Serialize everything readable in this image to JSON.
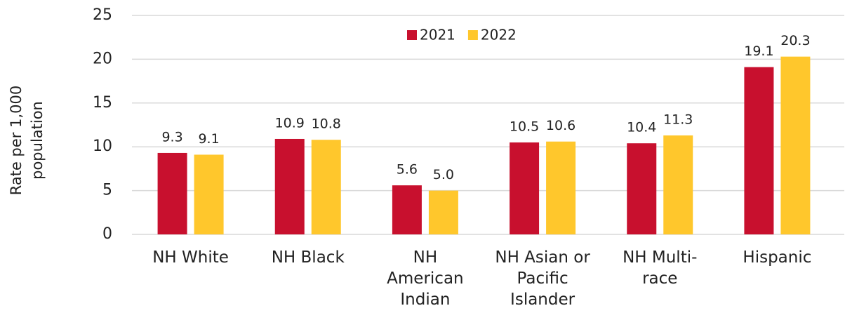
{
  "chart_data": {
    "type": "bar",
    "y_label": "Rate per 1,000 population",
    "categories": [
      "NH White",
      "NH Black",
      "NH American Indian",
      "NH Asian or Pacific Islander",
      "NH Multi-race",
      "Hispanic"
    ],
    "series": [
      {
        "name": "2021",
        "color": "#c8102e",
        "values": [
          9.3,
          10.9,
          5.6,
          10.5,
          10.4,
          19.1
        ],
        "value_labels": [
          "9.3",
          "10.9",
          "5.6",
          "10.5",
          "10.4",
          "19.1"
        ]
      },
      {
        "name": "2022",
        "color": "#ffc72c",
        "values": [
          9.1,
          10.8,
          5.0,
          10.6,
          11.3,
          20.3
        ],
        "value_labels": [
          "9.1",
          "10.8",
          "5.0",
          "10.6",
          "11.3",
          "20.3"
        ]
      }
    ],
    "ylim": [
      0,
      25
    ],
    "yticks": [
      0,
      5,
      10,
      15,
      20,
      25
    ],
    "grid": true,
    "legend": "top"
  }
}
